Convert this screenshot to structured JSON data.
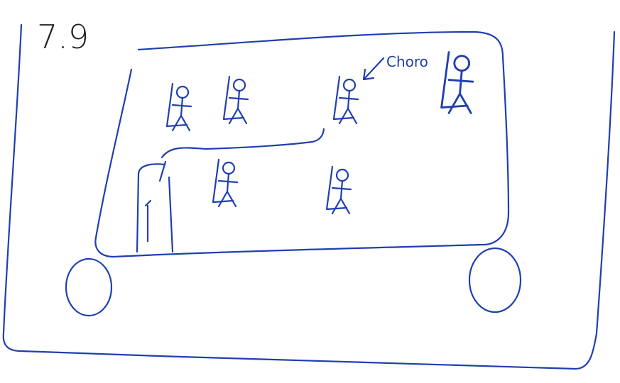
{
  "title": "7.9",
  "annotation": "Choro"
}
